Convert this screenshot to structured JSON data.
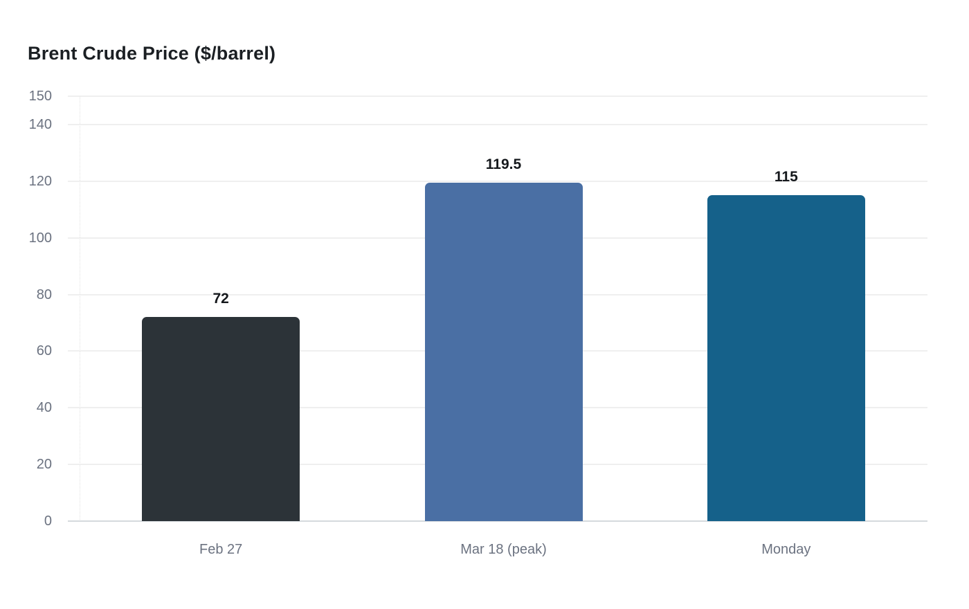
{
  "chart_data": {
    "type": "bar",
    "title": "Brent Crude Price ($/barrel)",
    "categories": [
      "Feb 27",
      "Mar 18 (peak)",
      "Monday"
    ],
    "values": [
      72,
      119.5,
      115
    ],
    "value_labels": [
      "72",
      "119.5",
      "115"
    ],
    "bar_colors": [
      "#2c3338",
      "#4a6fa4",
      "#15618a"
    ],
    "ylim": [
      0,
      150
    ],
    "yticks": [
      0,
      20,
      40,
      60,
      80,
      100,
      120,
      140,
      150
    ],
    "xlabel": "",
    "ylabel": "",
    "grid": "horizontal",
    "legend_position": "none",
    "colors": {
      "background": "#ffffff",
      "title_text": "#1b1f23",
      "tick_label_text": "#6b7280",
      "category_label_text": "#6b7280",
      "value_label_text": "#15181c",
      "gridline": "#efefef",
      "baseline": "#d5d9dd"
    }
  }
}
